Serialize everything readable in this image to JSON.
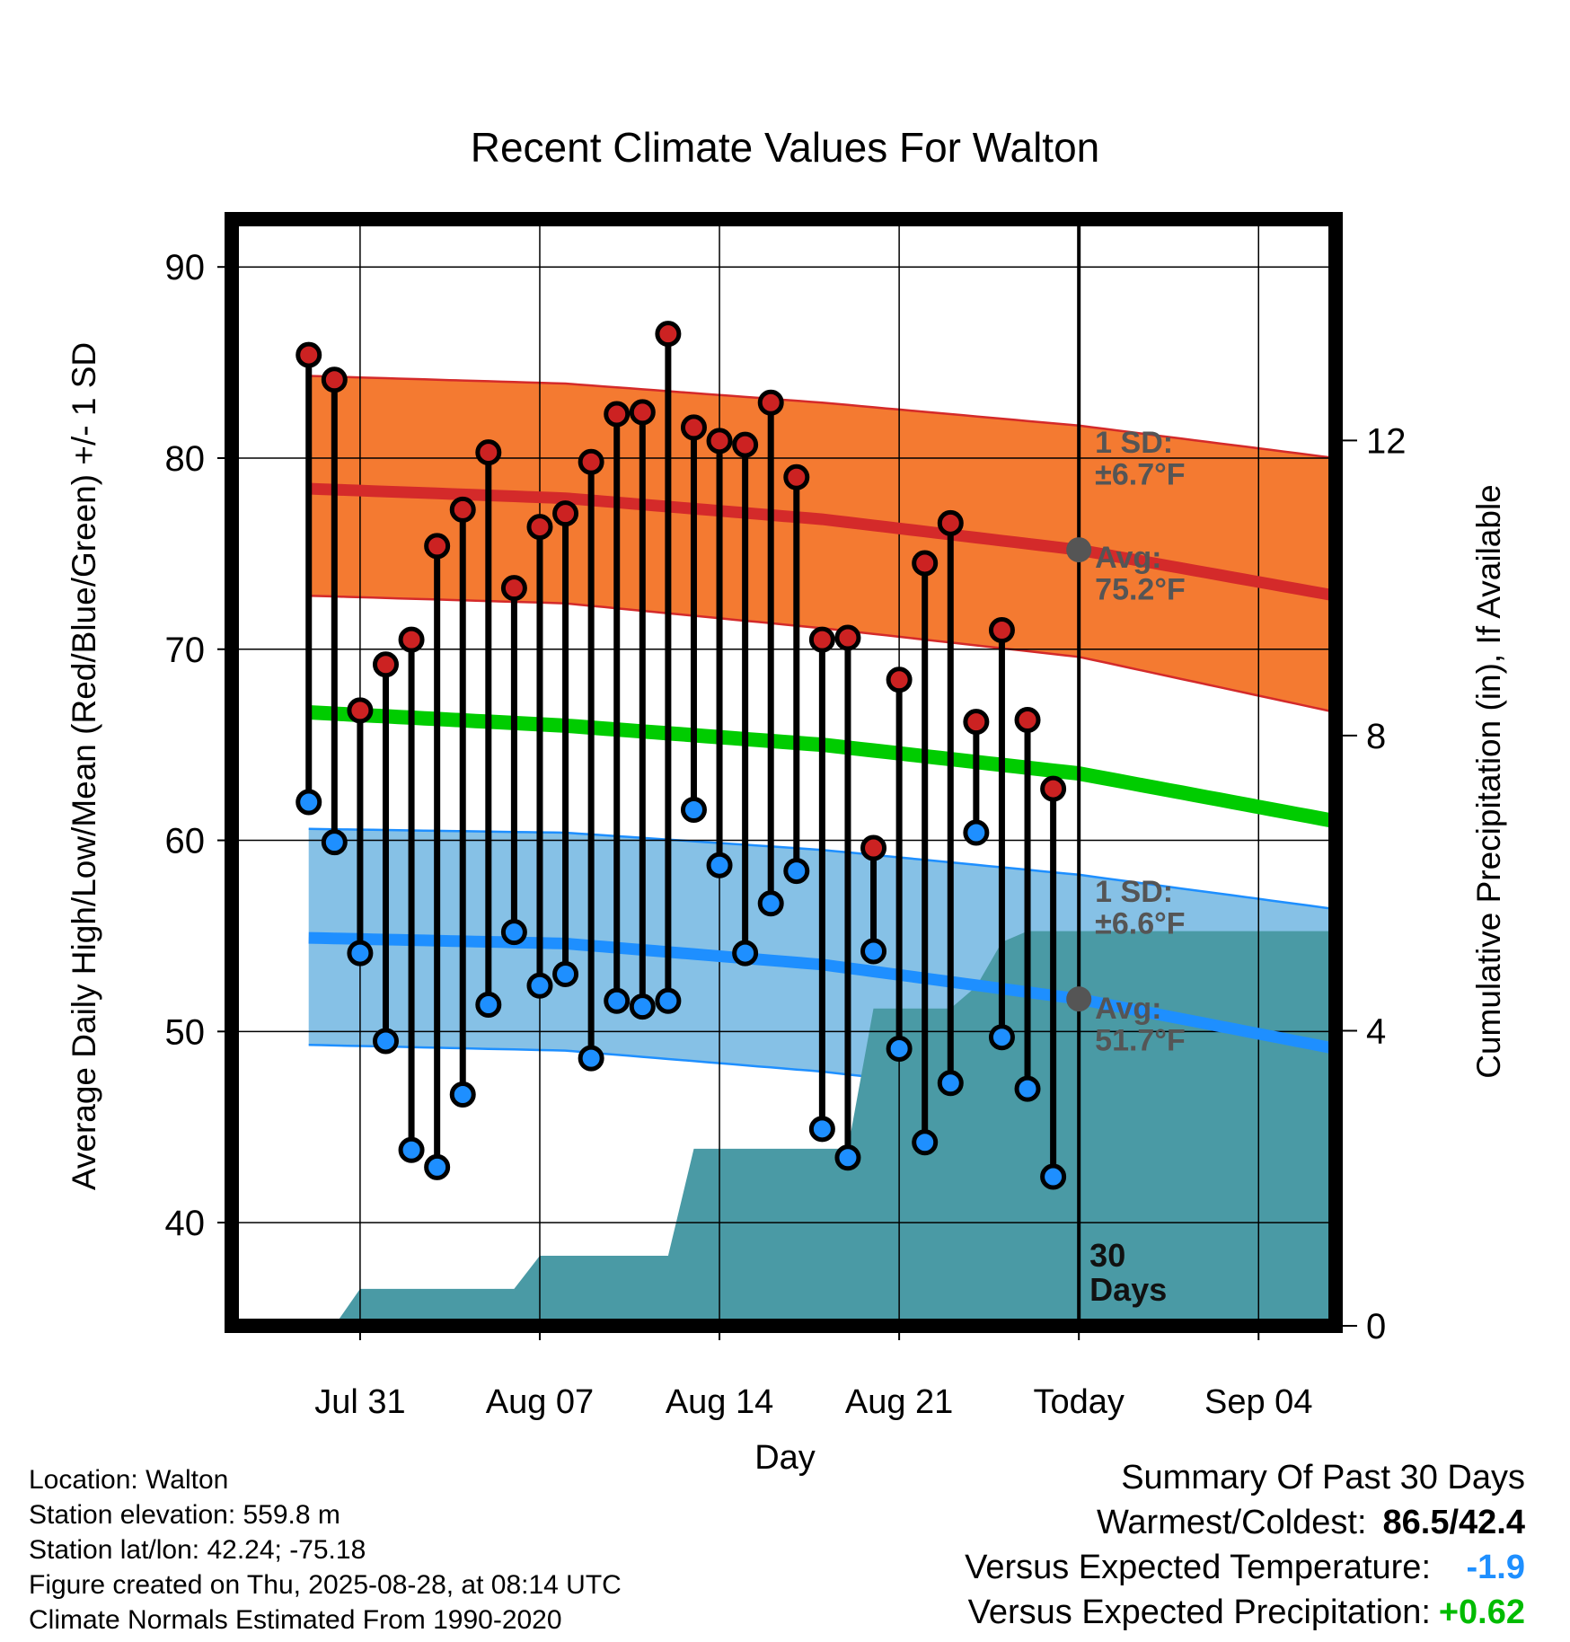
{
  "chart_data": {
    "type": "line",
    "title": "Recent Climate Values For Walton",
    "xlabel": "Day",
    "ylabel_left": "Average Daily High/Low/Mean (Red/Blue/Green) +/- 1 SD",
    "ylabel_right": "Cumulative Precipitation (in), If Available",
    "x_range_days": [
      -33,
      10
    ],
    "x_ticks": [
      {
        "day": -28,
        "label": "Jul 31"
      },
      {
        "day": -21,
        "label": "Aug 07"
      },
      {
        "day": -14,
        "label": "Aug 14"
      },
      {
        "day": -7,
        "label": "Aug 21"
      },
      {
        "day": 0,
        "label": "Today"
      },
      {
        "day": 7,
        "label": "Sep 04"
      }
    ],
    "ylim_temp": [
      34.6,
      92.5
    ],
    "y_ticks_temp": [
      40,
      50,
      60,
      70,
      80,
      90
    ],
    "ylim_precip": [
      0,
      15
    ],
    "y_ticks_precip": [
      0,
      4,
      8,
      12
    ],
    "daily": {
      "day": [
        -30,
        -29,
        -28,
        -27,
        -26,
        -25,
        -24,
        -23,
        -22,
        -21,
        -20,
        -19,
        -18,
        -17,
        -16,
        -15,
        -14,
        -13,
        -12,
        -11,
        -10,
        -9,
        -8,
        -7,
        -6,
        -5,
        -4,
        -3,
        -2,
        -1
      ],
      "high": [
        85.4,
        84.1,
        66.8,
        69.2,
        70.5,
        75.4,
        77.3,
        80.3,
        73.2,
        76.4,
        77.1,
        79.8,
        82.3,
        82.4,
        86.5,
        81.6,
        80.9,
        80.7,
        82.9,
        79.0,
        70.5,
        70.6,
        59.6,
        68.4,
        74.5,
        76.6,
        66.2,
        71.0,
        66.3,
        62.7
      ],
      "low": [
        62.0,
        59.9,
        54.1,
        49.5,
        43.8,
        42.9,
        46.7,
        51.4,
        55.2,
        52.4,
        53.0,
        48.6,
        51.6,
        51.3,
        51.6,
        61.6,
        58.7,
        54.1,
        56.7,
        58.4,
        44.9,
        43.4,
        54.2,
        49.1,
        44.2,
        47.3,
        60.4,
        49.7,
        47.0,
        42.4
      ]
    },
    "normals": {
      "day": [
        -30,
        -20,
        -10,
        0,
        10
      ],
      "high_avg": [
        78.4,
        77.9,
        76.8,
        75.2,
        72.8
      ],
      "high_sd_upper": [
        84.3,
        83.9,
        82.9,
        81.7,
        80.0
      ],
      "high_sd_lower": [
        72.8,
        72.4,
        71.1,
        69.6,
        66.7
      ],
      "mean_avg": [
        66.7,
        66.0,
        65.0,
        63.5,
        61.0
      ],
      "low_avg": [
        54.9,
        54.6,
        53.5,
        51.7,
        49.1
      ],
      "low_sd_upper": [
        60.6,
        60.4,
        59.5,
        58.2,
        56.4
      ],
      "low_sd_lower": [
        49.3,
        49.0,
        47.9,
        46.4,
        45.1
      ]
    },
    "precip_cumulative": {
      "day": [
        -30,
        -29,
        -28,
        -27,
        -26,
        -25,
        -24,
        -23,
        -22,
        -21,
        -20,
        -19,
        -18,
        -17,
        -16,
        -15,
        -14,
        -13,
        -12,
        -11,
        -10,
        -9,
        -8,
        -7,
        -6,
        -5,
        -4,
        -3,
        -2,
        -1,
        0,
        10
      ],
      "inches": [
        0,
        0,
        0.5,
        0.5,
        0.5,
        0.5,
        0.5,
        0.5,
        0.5,
        0.95,
        0.95,
        0.95,
        0.95,
        0.95,
        0.95,
        2.4,
        2.4,
        2.4,
        2.4,
        2.4,
        2.4,
        2.4,
        4.3,
        4.3,
        4.3,
        4.3,
        4.6,
        5.2,
        5.35,
        5.35,
        5.35,
        5.35
      ]
    },
    "annotations": {
      "high_sd": {
        "line1": "1 SD:",
        "line2": "±6.7°F"
      },
      "high_avg": {
        "line1": "Avg:",
        "line2": "75.2°F"
      },
      "low_sd": {
        "line1": "1 SD:",
        "line2": "±6.6°F"
      },
      "low_avg": {
        "line1": "Avg:",
        "line2": "51.7°F"
      },
      "window": {
        "line1": "30",
        "line2": "Days"
      }
    },
    "colors": {
      "high_band": "#f47a31",
      "high_line": "#d42a2a",
      "high_dot": "#cc2222",
      "mean_line": "#00cc00",
      "low_band": "#86c1e6",
      "low_line": "#1e8fff",
      "low_dot": "#1e8fff",
      "precip_fill": "#4a9aa5",
      "annotation_text": "#555555"
    }
  },
  "footer": {
    "location": "Location: Walton",
    "elevation": "Station elevation: 559.8 m",
    "latlon": "Station lat/lon: 42.24; -75.18",
    "created": "Figure created on Thu, 2025-08-28, at 08:14 UTC",
    "normals": "Climate Normals Estimated From 1990-2020"
  },
  "summary": {
    "title": "Summary Of Past 30 Days",
    "warmest_coldest_label": "Warmest/Coldest:",
    "warmest_coldest_value": "86.5/42.4",
    "temp_label": "Versus Expected Temperature:",
    "temp_value": "-1.9",
    "temp_color": "#1e8fff",
    "precip_label": "Versus Expected Precipitation:",
    "precip_value": "+0.62",
    "precip_color": "#00bb00"
  }
}
